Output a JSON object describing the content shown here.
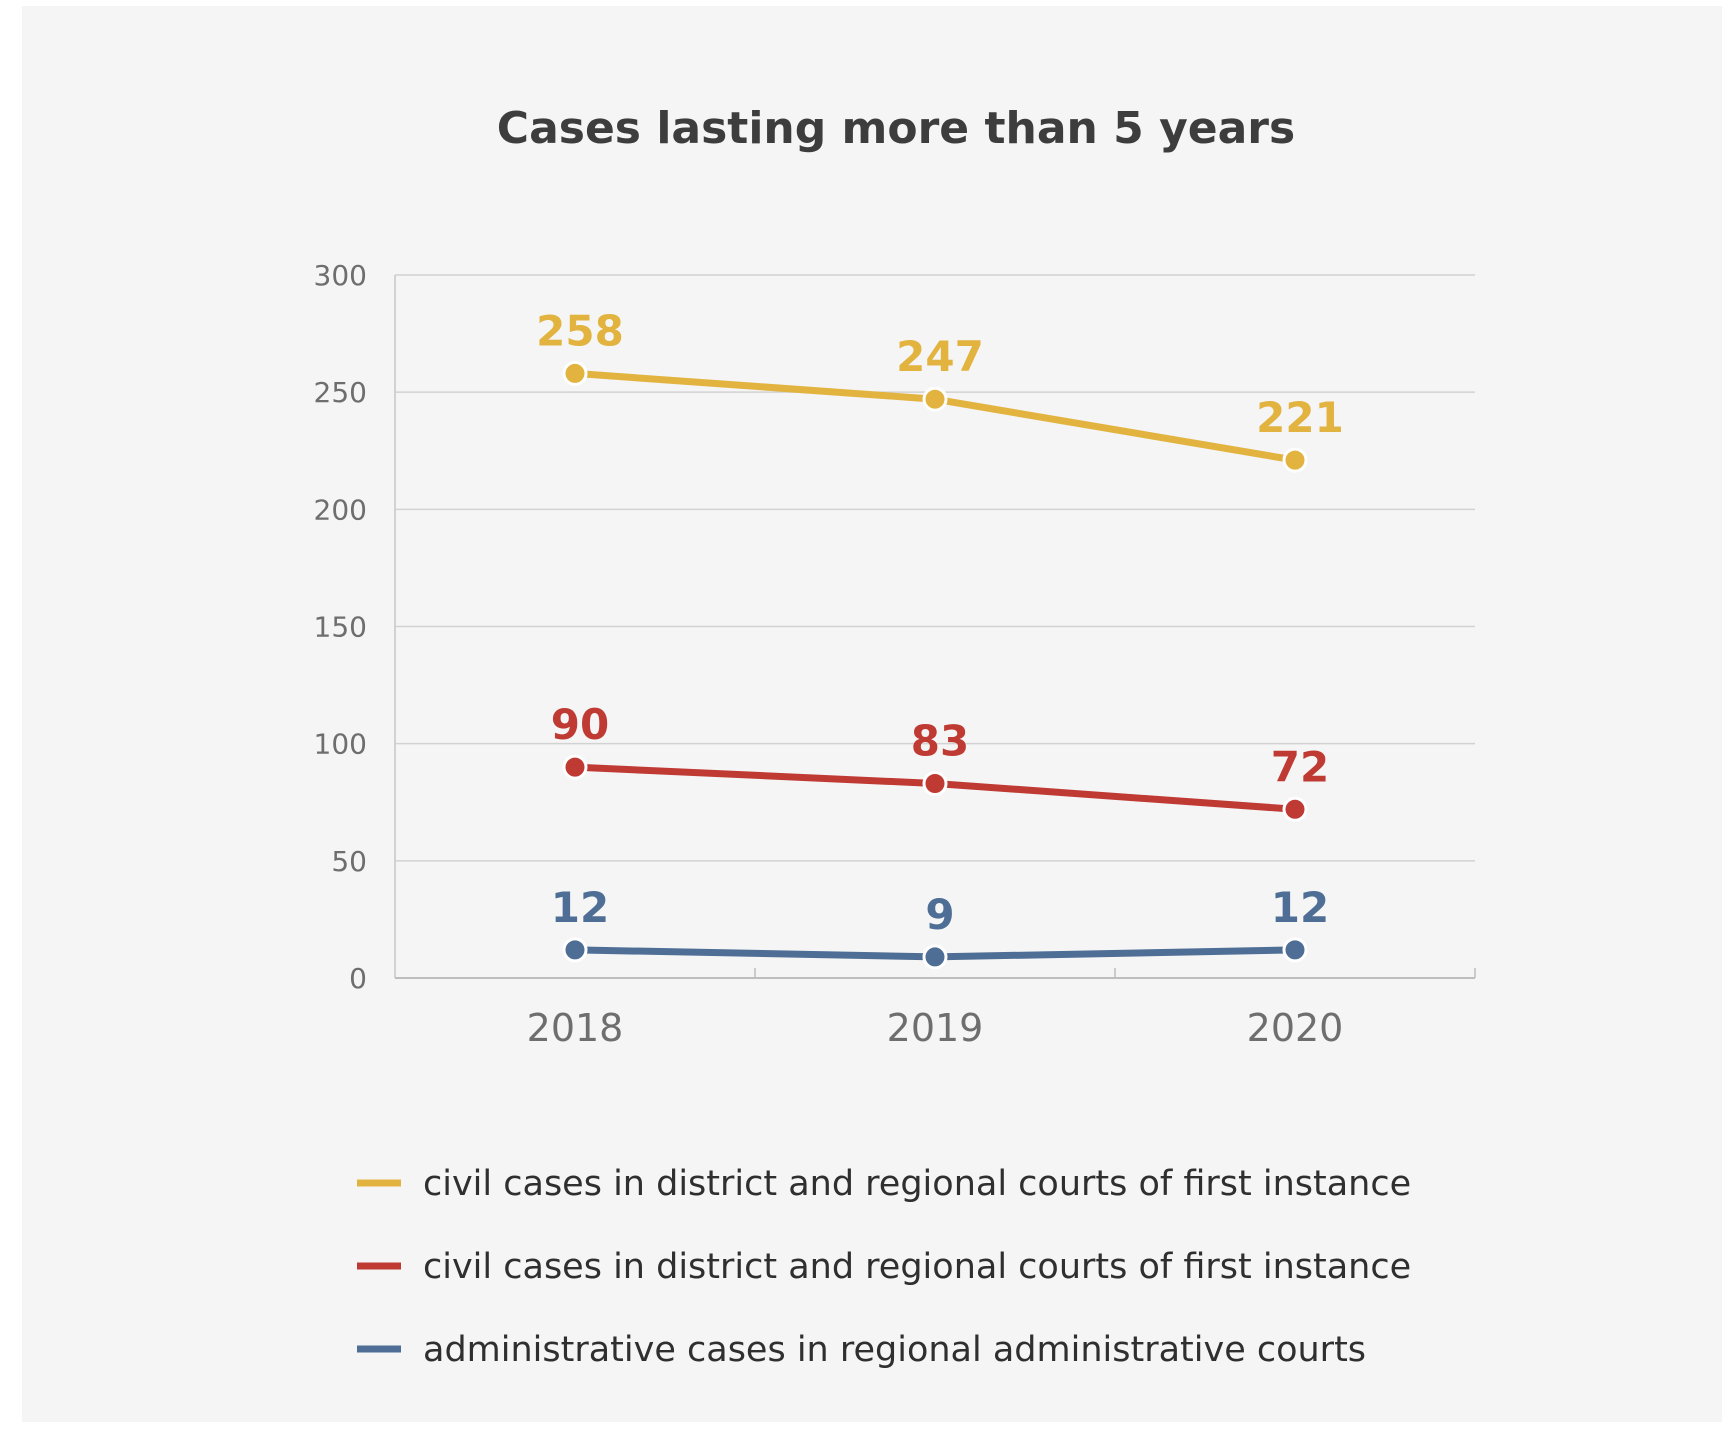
{
  "chart_data": {
    "type": "line",
    "title": "Cases lasting more than 5 years",
    "xlabel": "",
    "ylabel": "",
    "categories": [
      "2018",
      "2019",
      "2020"
    ],
    "ylim": [
      0,
      300
    ],
    "yticks": [
      0,
      50,
      100,
      150,
      200,
      250,
      300
    ],
    "grid": true,
    "legend_position": "bottom",
    "series": [
      {
        "name": "civil cases in district and regional courts of first instance",
        "color": "#e2b33f",
        "values": [
          258,
          247,
          221
        ]
      },
      {
        "name": "civil cases in district and regional courts of first instance",
        "color": "#c03a34",
        "values": [
          90,
          83,
          72
        ]
      },
      {
        "name": "administrative cases in regional administrative courts",
        "color": "#4f6e96",
        "values": [
          12,
          9,
          12
        ]
      }
    ]
  }
}
